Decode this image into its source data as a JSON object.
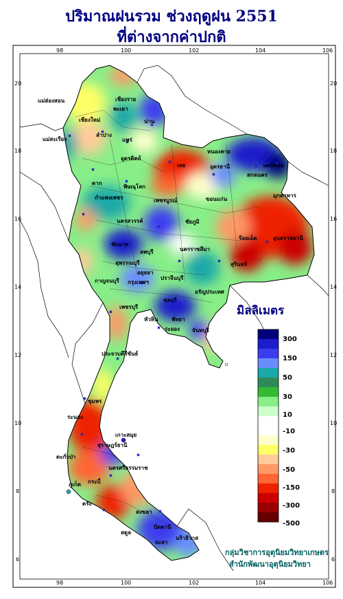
{
  "title_line1": "ปริมาณฝนรวม ช่วงฤดูฝน 2551",
  "title_line2": "ที่ต่างจากค่าปกติ",
  "lon_ticks": [
    "98",
    "100",
    "102",
    "104",
    "106"
  ],
  "lat_ticks": [
    "20",
    "18",
    "16",
    "14",
    "12",
    "10",
    "8",
    "6"
  ],
  "legend": {
    "title": "มิลลิเมตร",
    "labels": [
      "300",
      "150",
      "50",
      "30",
      "10",
      "-10",
      "-30",
      "-50",
      "-150",
      "-300",
      "-500"
    ],
    "colors": [
      "#00007a",
      "#1c1ccc",
      "#3c3cee",
      "#6a8cff",
      "#1aa8a8",
      "#2e8b57",
      "#33bb33",
      "#88ee88",
      "#ccffcc",
      "#ffffff",
      "#ffffcc",
      "#ffff66",
      "#ffcc99",
      "#ff9966",
      "#ff6633",
      "#ee2200",
      "#cc0000",
      "#990000",
      "#660000"
    ]
  },
  "places": [
    {
      "key": "maehongson",
      "name": "แม่ฮ่องสอน"
    },
    {
      "key": "chiangrai",
      "name": "เชียงราย"
    },
    {
      "key": "chiangmai",
      "name": "เชียงใหม่"
    },
    {
      "key": "phayao",
      "name": "พะเยา"
    },
    {
      "key": "nan",
      "name": "น่าน"
    },
    {
      "key": "lampang",
      "name": "ลำปาง"
    },
    {
      "key": "phrae",
      "name": "แพร่"
    },
    {
      "key": "maesariang",
      "name": "แม่สะเรียง"
    },
    {
      "key": "uttaradit",
      "name": "อุตรดิตถ์"
    },
    {
      "key": "loei",
      "name": "เลย"
    },
    {
      "key": "tak",
      "name": "ตาก"
    },
    {
      "key": "phitsanulok",
      "name": "พิษณุโลก"
    },
    {
      "key": "nongkhai",
      "name": "หนองคาย"
    },
    {
      "key": "udonthani",
      "name": "อุดรธานี"
    },
    {
      "key": "sakonnakhon",
      "name": "สกลนคร"
    },
    {
      "key": "nakhonphanom",
      "name": "นครพนม"
    },
    {
      "key": "mukdahan",
      "name": "มุกดาหาร"
    },
    {
      "key": "kamphaengphet",
      "name": "กำแพงเพชร"
    },
    {
      "key": "phetchabun",
      "name": "เพชรบูรณ์"
    },
    {
      "key": "khonkaen",
      "name": "ขอนแก่น"
    },
    {
      "key": "nakhonsawan",
      "name": "นครสวรรค์"
    },
    {
      "key": "chaiyaphum",
      "name": "ชัยภูมิ"
    },
    {
      "key": "roiet",
      "name": "ร้อยเอ็ด"
    },
    {
      "key": "ubon",
      "name": "อุบลราชธานี"
    },
    {
      "key": "chainat",
      "name": "ชัยนาท"
    },
    {
      "key": "lopburi",
      "name": "ลพบุรี"
    },
    {
      "key": "nakhonratchasima",
      "name": "นครราชสีมา"
    },
    {
      "key": "surin",
      "name": "สุรินทร์"
    },
    {
      "key": "suphanburi",
      "name": "สุพรรณบุรี"
    },
    {
      "key": "ayutthaya",
      "name": "อยุธยา"
    },
    {
      "key": "kanchanaburi",
      "name": "กาญจนบุรี"
    },
    {
      "key": "bangkok",
      "name": "กรุงเทพฯ"
    },
    {
      "key": "prachinburi",
      "name": "ปราจีนบุรี"
    },
    {
      "key": "aranyaprathet",
      "name": "อรัญประเทศ"
    },
    {
      "key": "chonburi",
      "name": "ชลบุรี"
    },
    {
      "key": "phetchaburi",
      "name": "เพชรบุรี"
    },
    {
      "key": "huahin",
      "name": "หัวหิน"
    },
    {
      "key": "pattaya",
      "name": "พัทยา"
    },
    {
      "key": "rayong",
      "name": "ระยอง"
    },
    {
      "key": "chanthaburi",
      "name": "จันทบุรี"
    },
    {
      "key": "prachuap",
      "name": "ประจวบคีรีขันธ์"
    },
    {
      "key": "chumphon",
      "name": "ชุมพร"
    },
    {
      "key": "ranong",
      "name": "ระนอง"
    },
    {
      "key": "surat",
      "name": "สุราษฎร์ธานี"
    },
    {
      "key": "kosamui",
      "name": "เกาะสมุย"
    },
    {
      "key": "takuapa",
      "name": "ตะกั่วป่า"
    },
    {
      "key": "phuket",
      "name": "ภูเก็ต"
    },
    {
      "key": "nakhonsi",
      "name": "นครศรีธรรมราช"
    },
    {
      "key": "krabi",
      "name": "กระบี่"
    },
    {
      "key": "trang",
      "name": "ตรัง"
    },
    {
      "key": "songkhla",
      "name": "สงขลา"
    },
    {
      "key": "satun",
      "name": "สตูล"
    },
    {
      "key": "pattani",
      "name": "ปัตตานี"
    },
    {
      "key": "narathiwat",
      "name": "นราธิวาส"
    },
    {
      "key": "yala",
      "name": "ยะลา"
    }
  ],
  "credit_line1": "กลุ่มวิชาการอุตุนิยมวิทยาเกษตร",
  "credit_line2": "สำนักพัฒนาอุตุนิยมวิทยา"
}
